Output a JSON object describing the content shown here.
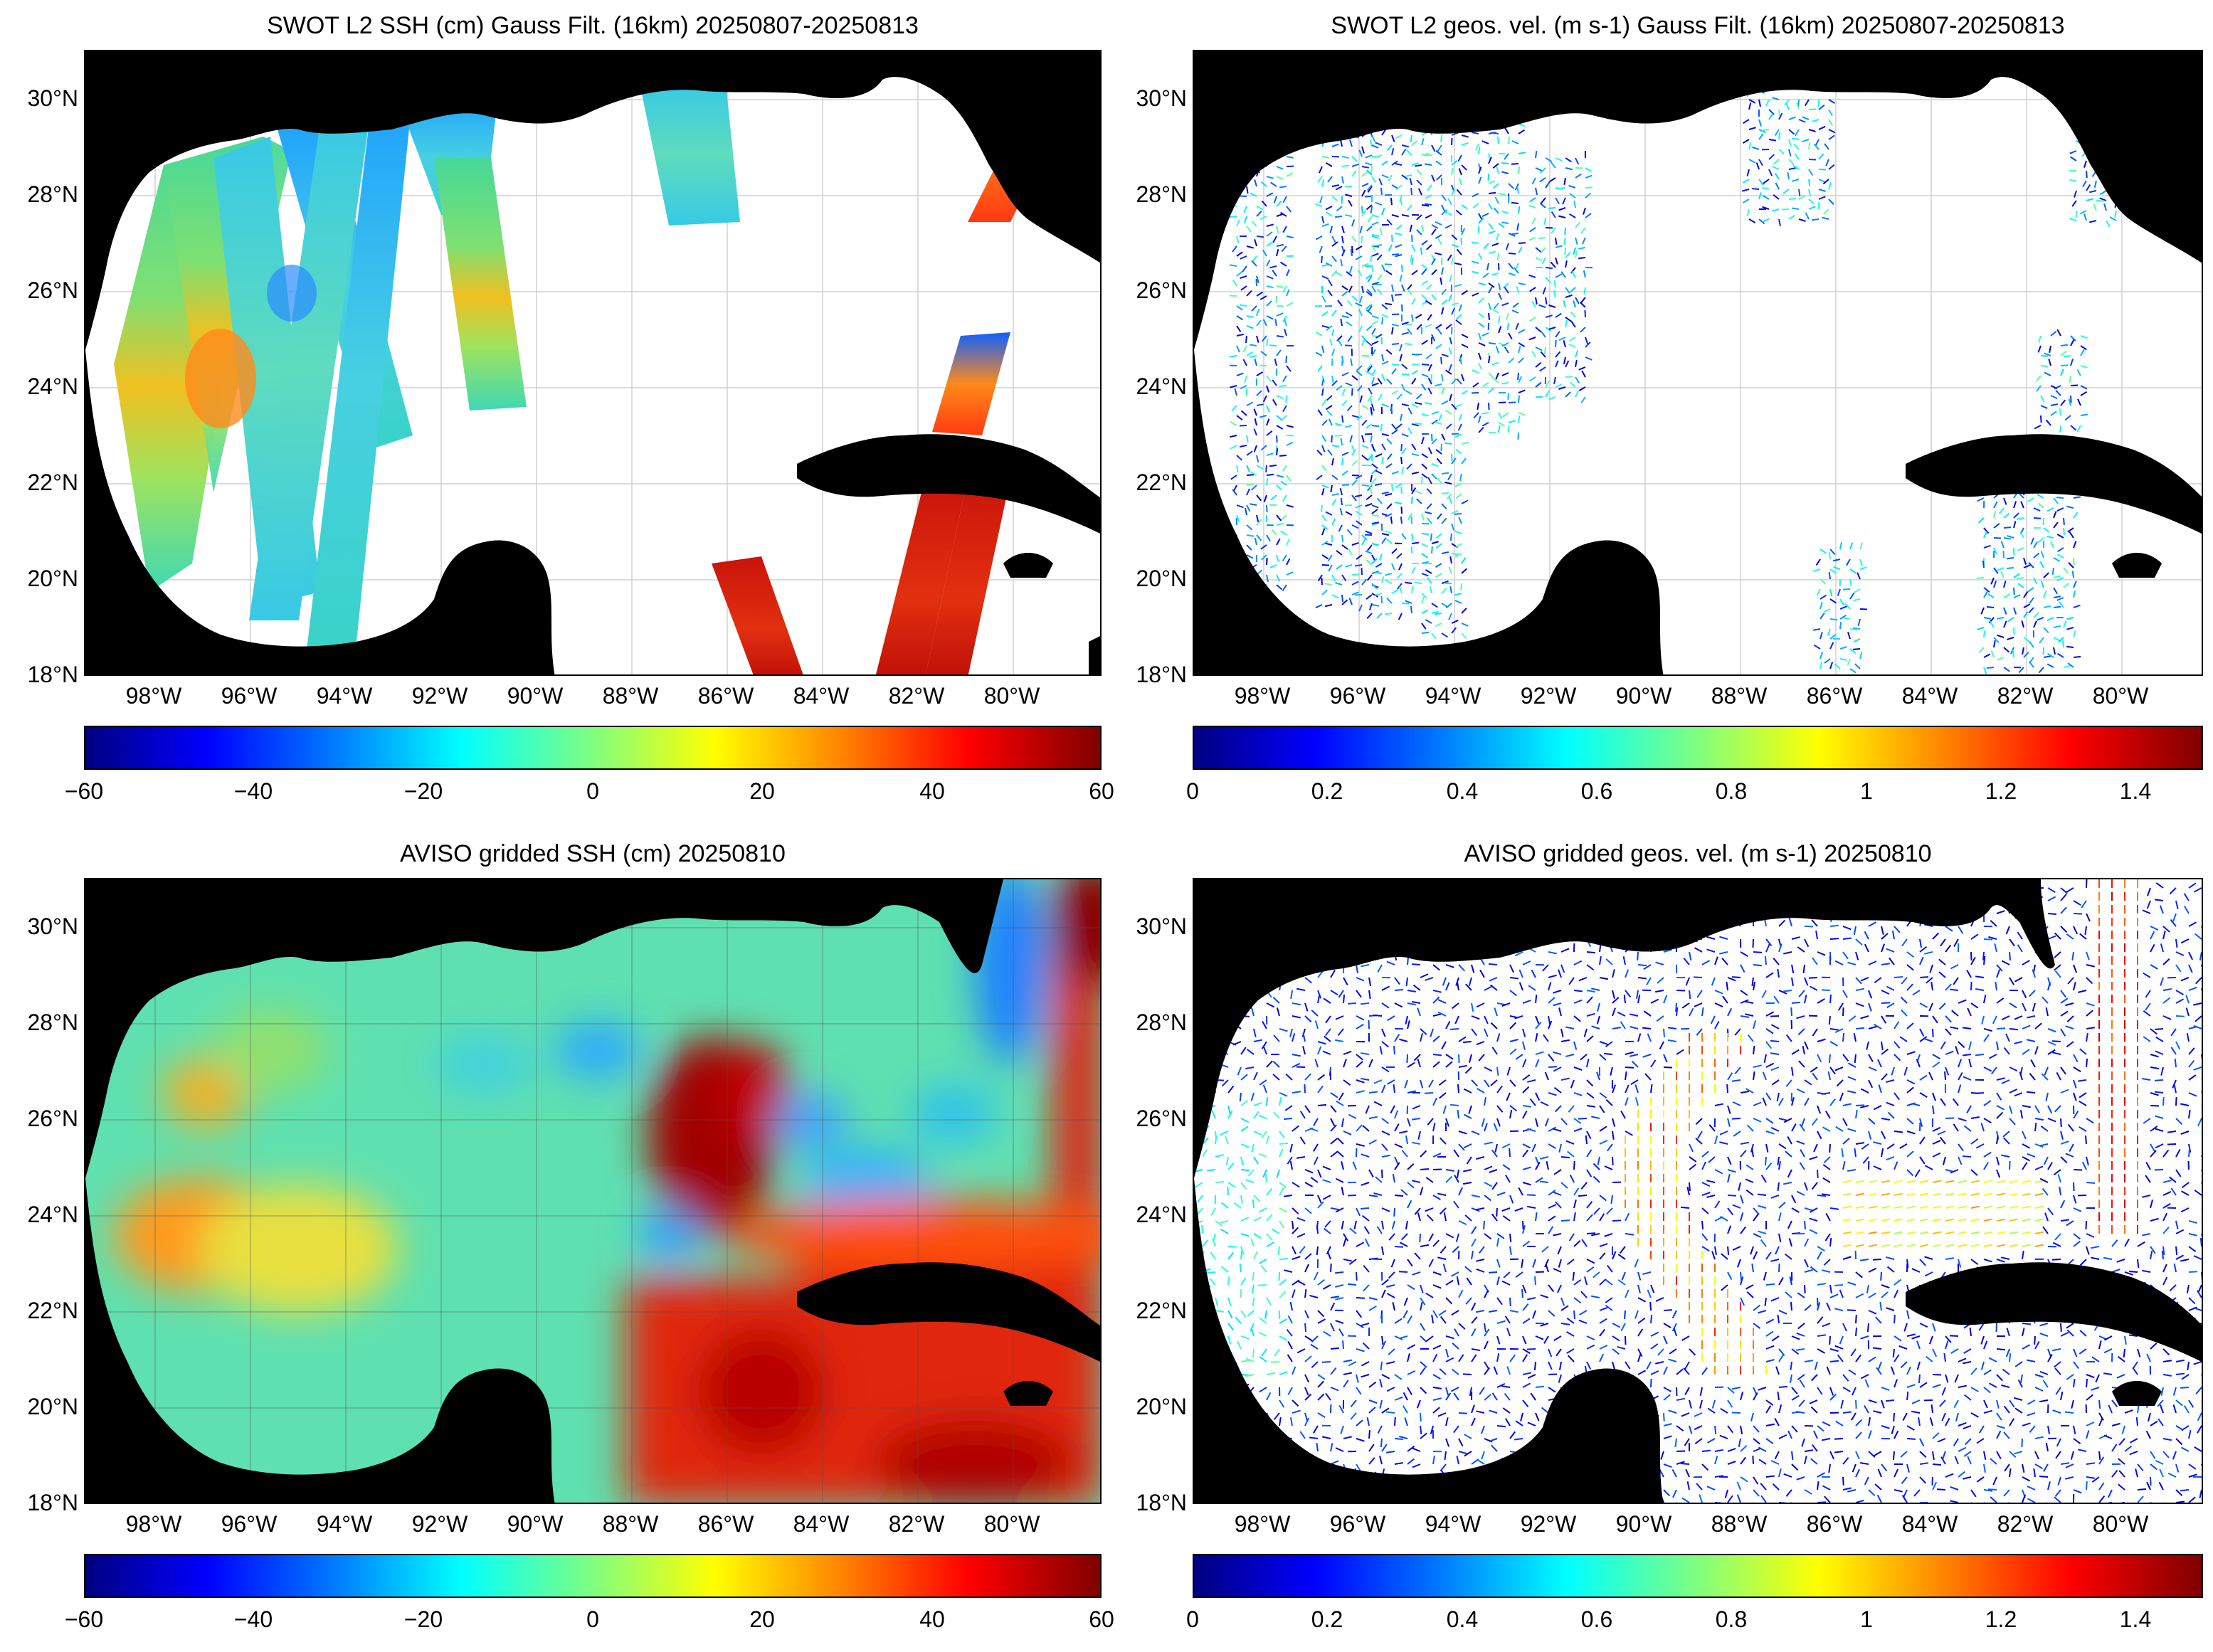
{
  "panels": [
    {
      "id": "swot-ssh",
      "title": "SWOT L2 SSH (cm) Gauss Filt. (16km) 20250807-20250813",
      "lat_ticks": [
        "30°N",
        "28°N",
        "26°N",
        "24°N",
        "22°N",
        "20°N",
        "18°N"
      ],
      "lon_ticks": [
        "98°W",
        "96°W",
        "94°W",
        "92°W",
        "90°W",
        "88°W",
        "86°W",
        "84°W",
        "82°W",
        "80°W"
      ],
      "colorbar": {
        "min": -60,
        "max": 60,
        "ticks": [
          "−60",
          "−40",
          "−20",
          "0",
          "20",
          "40",
          "60"
        ],
        "colormap": "jet"
      }
    },
    {
      "id": "swot-vel",
      "title": "SWOT L2 geos. vel. (m s-1) Gauss Filt. (16km) 20250807-20250813",
      "lat_ticks": [
        "30°N",
        "28°N",
        "26°N",
        "24°N",
        "22°N",
        "20°N",
        "18°N"
      ],
      "lon_ticks": [
        "98°W",
        "96°W",
        "94°W",
        "92°W",
        "90°W",
        "88°W",
        "86°W",
        "84°W",
        "82°W",
        "80°W"
      ],
      "colorbar": {
        "min": 0,
        "max": 1.5,
        "ticks": [
          "0",
          "0.2",
          "0.4",
          "0.6",
          "0.8",
          "1",
          "1.2",
          "1.4"
        ],
        "colormap": "jet"
      }
    },
    {
      "id": "aviso-ssh",
      "title": "AVISO gridded SSH (cm) 20250810",
      "lat_ticks": [
        "30°N",
        "28°N",
        "26°N",
        "24°N",
        "22°N",
        "20°N",
        "18°N"
      ],
      "lon_ticks": [
        "98°W",
        "96°W",
        "94°W",
        "92°W",
        "90°W",
        "88°W",
        "86°W",
        "84°W",
        "82°W",
        "80°W"
      ],
      "colorbar": {
        "min": -60,
        "max": 60,
        "ticks": [
          "−60",
          "−40",
          "−20",
          "0",
          "20",
          "40",
          "60"
        ],
        "colormap": "jet"
      }
    },
    {
      "id": "aviso-vel",
      "title": "AVISO gridded geos. vel. (m s-1)  20250810",
      "lat_ticks": [
        "30°N",
        "28°N",
        "26°N",
        "24°N",
        "22°N",
        "20°N",
        "18°N"
      ],
      "lon_ticks": [
        "98°W",
        "96°W",
        "94°W",
        "92°W",
        "90°W",
        "88°W",
        "86°W",
        "84°W",
        "82°W",
        "80°W"
      ],
      "colorbar": {
        "min": 0,
        "max": 1.5,
        "ticks": [
          "0",
          "0.2",
          "0.4",
          "0.6",
          "0.8",
          "1",
          "1.2",
          "1.4"
        ],
        "colormap": "jet"
      }
    }
  ],
  "map_extent": {
    "lon_min": -99.5,
    "lon_max": -77.6,
    "lat_min": 18,
    "lat_max": 31
  },
  "colors": {
    "land": "#000000",
    "ocean_missing": "#ffffff",
    "grid": "#cccccc"
  }
}
